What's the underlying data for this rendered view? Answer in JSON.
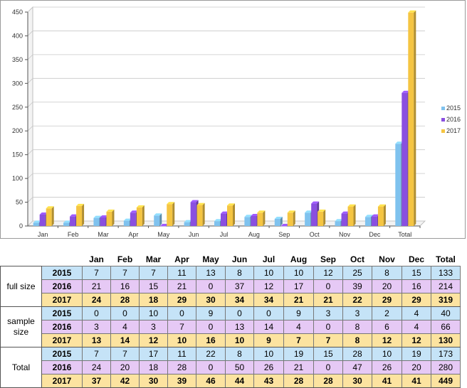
{
  "chart_data": {
    "type": "bar",
    "categories": [
      "Jan",
      "Feb",
      "Mar",
      "Apr",
      "May",
      "Jun",
      "Jul",
      "Aug",
      "Sep",
      "Oct",
      "Nov",
      "Dec",
      "Total"
    ],
    "y_ticks": [
      "0",
      "50",
      "100",
      "150",
      "200",
      "250",
      "300",
      "350",
      "400",
      "450"
    ],
    "ylim": [
      0,
      450
    ],
    "legend_position": "right",
    "series": [
      {
        "name": "2015",
        "color": "#7fc2ee",
        "values": [
          7,
          7,
          17,
          11,
          22,
          8,
          10,
          19,
          15,
          28,
          10,
          19,
          173
        ]
      },
      {
        "name": "2016",
        "color": "#8a4fe0",
        "values": [
          24,
          20,
          18,
          28,
          0,
          50,
          26,
          21,
          0,
          47,
          26,
          20,
          280
        ]
      },
      {
        "name": "2017",
        "color": "#f5c542",
        "values": [
          37,
          42,
          30,
          39,
          46,
          44,
          43,
          28,
          28,
          30,
          41,
          41,
          449
        ]
      }
    ]
  },
  "table": {
    "columns": [
      "Jan",
      "Feb",
      "Mar",
      "Apr",
      "May",
      "Jun",
      "Jul",
      "Aug",
      "Sep",
      "Oct",
      "Nov",
      "Dec",
      "Total"
    ],
    "groups": [
      {
        "label": "full size",
        "rows": [
          {
            "year": "2015",
            "values": [
              "7",
              "7",
              "7",
              "11",
              "13",
              "8",
              "10",
              "10",
              "12",
              "25",
              "8",
              "15",
              "133"
            ]
          },
          {
            "year": "2016",
            "values": [
              "21",
              "16",
              "15",
              "21",
              "0",
              "37",
              "12",
              "17",
              "0",
              "39",
              "20",
              "16",
              "214"
            ]
          },
          {
            "year": "2017",
            "values": [
              "24",
              "28",
              "18",
              "29",
              "30",
              "34",
              "34",
              "21",
              "21",
              "22",
              "29",
              "29",
              "319"
            ]
          }
        ]
      },
      {
        "label": "sample size",
        "rows": [
          {
            "year": "2015",
            "values": [
              "0",
              "0",
              "10",
              "0",
              "9",
              "0",
              "0",
              "9",
              "3",
              "3",
              "2",
              "4",
              "40"
            ]
          },
          {
            "year": "2016",
            "values": [
              "3",
              "4",
              "3",
              "7",
              "0",
              "13",
              "14",
              "4",
              "0",
              "8",
              "6",
              "4",
              "66"
            ]
          },
          {
            "year": "2017",
            "values": [
              "13",
              "14",
              "12",
              "10",
              "16",
              "10",
              "9",
              "7",
              "7",
              "8",
              "12",
              "12",
              "130"
            ]
          }
        ]
      },
      {
        "label": "Total",
        "rows": [
          {
            "year": "2015",
            "values": [
              "7",
              "7",
              "17",
              "11",
              "22",
              "8",
              "10",
              "19",
              "15",
              "28",
              "10",
              "19",
              "173"
            ]
          },
          {
            "year": "2016",
            "values": [
              "24",
              "20",
              "18",
              "28",
              "0",
              "50",
              "26",
              "21",
              "0",
              "47",
              "26",
              "20",
              "280"
            ]
          },
          {
            "year": "2017",
            "values": [
              "37",
              "42",
              "30",
              "39",
              "46",
              "44",
              "43",
              "28",
              "28",
              "30",
              "41",
              "41",
              "449"
            ]
          }
        ]
      }
    ]
  }
}
